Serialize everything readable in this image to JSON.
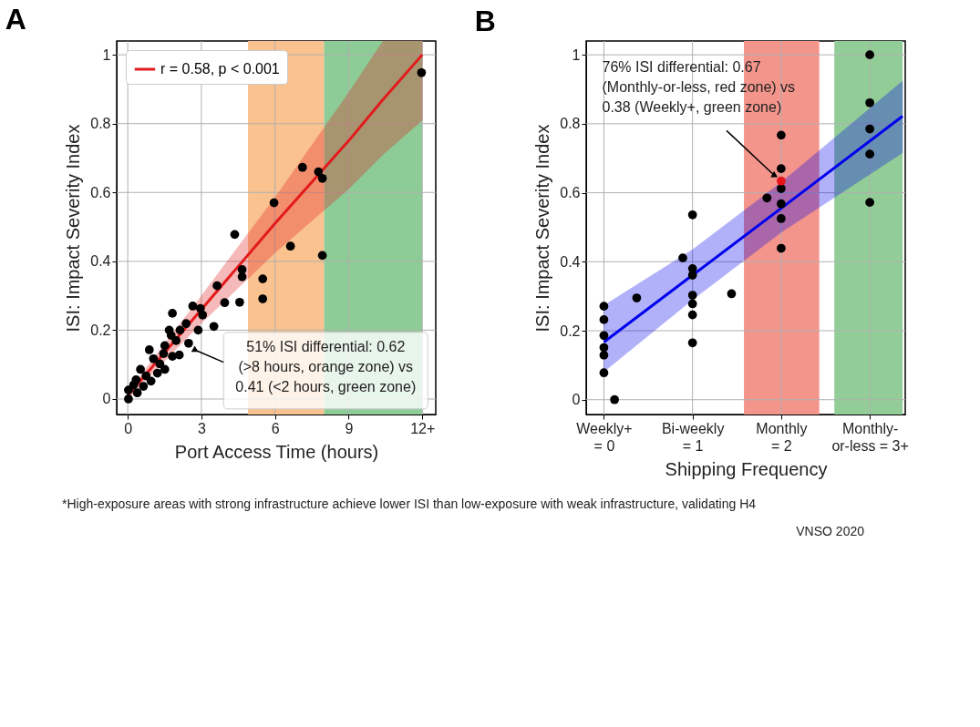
{
  "chart_data": [
    {
      "type": "scatter",
      "title": "A",
      "xlabel": "Port Access Time (hours)",
      "ylabel": "ISI: Impact Severity Index",
      "xlim": [
        -0.45,
        12.55
      ],
      "ylim": [
        -0.045,
        1.04
      ],
      "xticks": [
        0,
        3,
        6,
        9,
        {
          "value": 12,
          "label": "12+"
        }
      ],
      "yticks": [
        0,
        0.2,
        0.4,
        0.6,
        0.8,
        1
      ],
      "grid": true,
      "legend": "top left",
      "bands": [
        {
          "axis": "x",
          "from": 4.9,
          "to": 8,
          "color": "#f9c28e"
        },
        {
          "axis": "x",
          "from": 8,
          "to": 12,
          "color": "#8dcc96"
        }
      ],
      "series": [
        {
          "type": "line",
          "marker": "none",
          "name": "r = 0.58, p < 0.001",
          "color": "#e31a1c",
          "x": [
            0,
            3,
            6,
            9,
            10.4,
            12
          ],
          "values": [
            0.01,
            0.26,
            0.51,
            0.75,
            0.87,
            1.0
          ],
          "lower": [
            0.0,
            0.22,
            0.425,
            0.61,
            0.71,
            0.81
          ],
          "upper": [
            0.02,
            0.3,
            0.585,
            0.89,
            1.04,
            1.04
          ]
        },
        {
          "type": "scatter",
          "marker": "circle",
          "color": "#000000",
          "x": [
            4.36,
            6.63,
            7.93,
            4.66,
            4.66,
            5.5,
            5.5,
            3.64,
            3.95,
            4.56,
            3.51,
            2.65,
            2.96,
            3.05,
            1.82,
            2.38,
            2.87,
            2.48,
            2.1,
            1.69,
            2.13,
            1.77,
            1.51,
            0.88,
            1.46,
            1.05,
            1.82,
            1.51,
            1.21,
            0.52,
            0.75,
            0.95,
            0.34,
            0.64,
            0.39,
            0.03,
            0.03,
            0.24,
            1.31,
            1.97,
            5.96,
            7.12,
            7.77,
            7.93,
            11.97
          ],
          "values": [
            0.478,
            0.444,
            0.417,
            0.376,
            0.355,
            0.349,
            0.291,
            0.329,
            0.28,
            0.281,
            0.211,
            0.27,
            0.263,
            0.244,
            0.249,
            0.219,
            0.2,
            0.162,
            0.128,
            0.2,
            0.2,
            0.185,
            0.155,
            0.143,
            0.132,
            0.117,
            0.124,
            0.086,
            0.075,
            0.086,
            0.067,
            0.052,
            0.056,
            0.037,
            0.018,
            0.026,
            0.0,
            0.041,
            0.102,
            0.17,
            0.57,
            0.673,
            0.66,
            0.641,
            0.948
          ]
        }
      ],
      "annotations": [
        {
          "text": "51% ISI differential: 0.62\n(>8 hours, orange zone) vs\n0.41 (<2 hours, green zone)",
          "x": 2.73,
          "y": 0.143
        }
      ]
    },
    {
      "type": "scatter",
      "title": "B",
      "xlabel": "Shipping Frequency",
      "ylabel": "ISI: Impact Severity Index",
      "xlim": [
        -0.2,
        3.4
      ],
      "ylim": [
        -0.043,
        1.04
      ],
      "xticks": [
        {
          "value": 0,
          "label": "Weekly+\n= 0"
        },
        {
          "value": 1,
          "label": "Bi-weekly\n= 1"
        },
        {
          "value": 2,
          "label": "Monthly\n= 2"
        },
        {
          "value": 3,
          "label": "Monthly-\nor-less = 3+"
        }
      ],
      "yticks": [
        0,
        0.2,
        0.4,
        0.6,
        0.8,
        1
      ],
      "grid": true,
      "bands": [
        {
          "axis": "x",
          "from": 1.58,
          "to": 2.43,
          "color": "#f4958c"
        },
        {
          "axis": "x",
          "from": 2.6,
          "to": 3.37,
          "color": "#92cd97"
        }
      ],
      "series": [
        {
          "type": "line",
          "marker": "none",
          "color": "#0000ee",
          "x": [
            0,
            1,
            2,
            3.37
          ],
          "values": [
            0.167,
            0.361,
            0.555,
            0.822
          ],
          "lower": [
            0.081,
            0.29,
            0.485,
            0.716
          ],
          "upper": [
            0.273,
            0.435,
            0.63,
            0.924
          ]
        },
        {
          "type": "scatter",
          "marker": "circle",
          "color": "#000000",
          "x": [
            3,
            3,
            3,
            3,
            3,
            2,
            2,
            2,
            2,
            2,
            1.84,
            2,
            1,
            1,
            1,
            1,
            1,
            1,
            1,
            0.89,
            1.44,
            0,
            0,
            0,
            0,
            0,
            0,
            0.12,
            0.37
          ],
          "values": [
            1.0,
            0.861,
            0.785,
            0.712,
            0.572,
            0.767,
            0.67,
            0.612,
            0.568,
            0.525,
            0.585,
            0.439,
            0.536,
            0.38,
            0.361,
            0.303,
            0.278,
            0.246,
            0.165,
            0.411,
            0.307,
            0.271,
            0.232,
            0.186,
            0.151,
            0.129,
            0.078,
            0.0,
            0.295
          ]
        },
        {
          "type": "scatter",
          "marker": "circle",
          "color": "#e8141c",
          "x": [
            2
          ],
          "values": [
            0.634
          ]
        }
      ],
      "annotations": [
        {
          "text": "76% ISI differential: 0.67\n(Monthly-or-less, red zone) vs\n0.38 (Weekly+, green zone)",
          "x": 1.92,
          "y": 0.651
        },
        "*High-exposure areas with strong infrastructure achieve lower ISI than low-exposure with weak infrastructure, validating H4",
        "VNSO 2020"
      ]
    }
  ]
}
